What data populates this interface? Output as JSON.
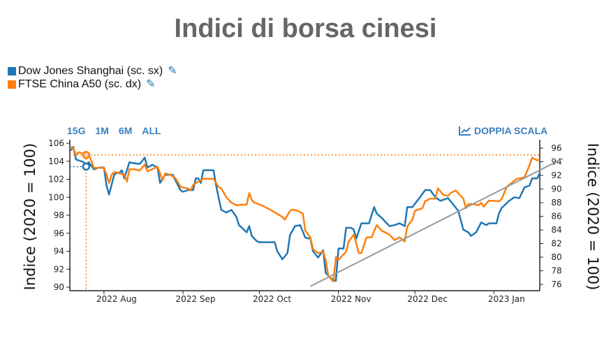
{
  "title": "Indici di borsa cinesi",
  "legend": [
    {
      "label": "Dow Jones Shanghai (sc. sx)",
      "color": "#1f77b4",
      "icon": "edit-icon"
    },
    {
      "label": "FTSE China A50 (sc. dx)",
      "color": "#ff7f0e",
      "icon": "edit-icon"
    }
  ],
  "range_buttons": [
    "15G",
    "1M",
    "6M",
    "ALL"
  ],
  "dual_scale_button": {
    "label": "DOPPIA SCALA",
    "icon": "chart-line-icon"
  },
  "chart_data": {
    "type": "line",
    "x_unit": "days from 2022 Aug 1",
    "xlim": [
      -13.4,
      171
    ],
    "x_ticks": [
      {
        "label": "2022 Aug",
        "x": 0
      },
      {
        "label": "2022 Sep",
        "x": 31
      },
      {
        "label": "2022 Oct",
        "x": 61
      },
      {
        "label": "2022 Nov",
        "x": 92
      },
      {
        "label": "2022 Dec",
        "x": 122
      },
      {
        "label": "2023 Jan",
        "x": 153
      }
    ],
    "y_left": {
      "label": "Indice (2020 = 100)",
      "lim": [
        89.8,
        106.4
      ],
      "ticks": [
        90,
        92,
        94,
        96,
        98,
        100,
        102,
        104,
        106
      ]
    },
    "y_right": {
      "label": "Indice (2020 = 100)",
      "lim": [
        75.2,
        96.5
      ],
      "ticks": [
        76,
        78,
        80,
        82,
        84,
        86,
        88,
        90,
        92,
        94,
        96
      ]
    },
    "series": [
      {
        "name": "Dow Jones Shanghai (sc. sx)",
        "axis": "left",
        "color": "#1f77b4",
        "points": [
          [
            -13,
            105.2
          ],
          [
            -12,
            105.6
          ],
          [
            -11,
            104.2
          ],
          [
            -8,
            103.9
          ],
          [
            -7,
            103.4
          ],
          [
            -6,
            103.9
          ],
          [
            -4,
            103.1
          ],
          [
            -2,
            103.3
          ],
          [
            0,
            103.3
          ],
          [
            1,
            101.3
          ],
          [
            2,
            100.3
          ],
          [
            4,
            102.5
          ],
          [
            5,
            102.7
          ],
          [
            6,
            102.7
          ],
          [
            7,
            103.0
          ],
          [
            8,
            102.1
          ],
          [
            10,
            103.9
          ],
          [
            11,
            103.8
          ],
          [
            14,
            103.7
          ],
          [
            16,
            104.4
          ],
          [
            17,
            103.3
          ],
          [
            19,
            103.6
          ],
          [
            21,
            103.3
          ],
          [
            22,
            101.6
          ],
          [
            24,
            102.5
          ],
          [
            27,
            102.5
          ],
          [
            28,
            101.9
          ],
          [
            30,
            100.8
          ],
          [
            31,
            100.6
          ],
          [
            33,
            100.8
          ],
          [
            35,
            100.8
          ],
          [
            36,
            102.1
          ],
          [
            37,
            102.1
          ],
          [
            38,
            101.6
          ],
          [
            39,
            103.0
          ],
          [
            43,
            103.0
          ],
          [
            44,
            101.3
          ],
          [
            46,
            98.6
          ],
          [
            48,
            98.3
          ],
          [
            50,
            98.6
          ],
          [
            52,
            97.8
          ],
          [
            53,
            96.9
          ],
          [
            56,
            96.1
          ],
          [
            57,
            96.8
          ],
          [
            58,
            95.7
          ],
          [
            60,
            95.1
          ],
          [
            61,
            95.0
          ],
          [
            63,
            95.0
          ],
          [
            67,
            95.0
          ],
          [
            68,
            94.0
          ],
          [
            70,
            93.1
          ],
          [
            72,
            93.8
          ],
          [
            73,
            95.8
          ],
          [
            75,
            96.8
          ],
          [
            77,
            96.9
          ],
          [
            79,
            95.5
          ],
          [
            81,
            95.4
          ],
          [
            82,
            94.0
          ],
          [
            84,
            93.3
          ],
          [
            86,
            94.1
          ],
          [
            87,
            91.6
          ],
          [
            89,
            91.0
          ],
          [
            91,
            90.7
          ],
          [
            92,
            94.3
          ],
          [
            94,
            94.3
          ],
          [
            95,
            96.6
          ],
          [
            97,
            96.6
          ],
          [
            98,
            96.4
          ],
          [
            99,
            95.4
          ],
          [
            101,
            97.1
          ],
          [
            104,
            97.1
          ],
          [
            106,
            98.9
          ],
          [
            107,
            98.2
          ],
          [
            109,
            97.7
          ],
          [
            112,
            96.8
          ],
          [
            114,
            96.9
          ],
          [
            116,
            97.1
          ],
          [
            118,
            96.8
          ],
          [
            119,
            98.9
          ],
          [
            121,
            98.9
          ],
          [
            124,
            100.0
          ],
          [
            126,
            100.8
          ],
          [
            128,
            100.8
          ],
          [
            130,
            100.0
          ],
          [
            132,
            99.6
          ],
          [
            135,
            99.9
          ],
          [
            137,
            99.2
          ],
          [
            139,
            98.5
          ],
          [
            141,
            96.4
          ],
          [
            143,
            96.1
          ],
          [
            144,
            95.7
          ],
          [
            146,
            96.1
          ],
          [
            148,
            97.2
          ],
          [
            150,
            96.9
          ],
          [
            151,
            97.1
          ],
          [
            154,
            97.1
          ],
          [
            155,
            98.2
          ],
          [
            156,
            98.8
          ],
          [
            159,
            99.6
          ],
          [
            161,
            100.0
          ],
          [
            163,
            99.9
          ],
          [
            165,
            101.1
          ],
          [
            167,
            101.3
          ],
          [
            168,
            102.1
          ],
          [
            170,
            102.1
          ],
          [
            171,
            102.7
          ]
        ]
      },
      {
        "name": "FTSE China A50 (sc. dx)",
        "axis": "right",
        "color": "#ff7f0e",
        "points": [
          [
            -13,
            96.2
          ],
          [
            -12,
            96.0
          ],
          [
            -11,
            95.0
          ],
          [
            -10,
            95.4
          ],
          [
            -8,
            95.2
          ],
          [
            -6,
            95.0
          ],
          [
            -5,
            94.2
          ],
          [
            -4,
            93.1
          ],
          [
            0,
            93.1
          ],
          [
            1,
            92.1
          ],
          [
            2,
            90.9
          ],
          [
            3,
            92.1
          ],
          [
            4,
            92.5
          ],
          [
            6,
            92.3
          ],
          [
            8,
            92.1
          ],
          [
            9,
            91.1
          ],
          [
            10,
            92.9
          ],
          [
            12,
            92.9
          ],
          [
            14,
            92.7
          ],
          [
            16,
            93.6
          ],
          [
            17,
            92.6
          ],
          [
            19,
            92.9
          ],
          [
            21,
            93.3
          ],
          [
            23,
            91.3
          ],
          [
            24,
            92.3
          ],
          [
            26,
            92.1
          ],
          [
            28,
            91.6
          ],
          [
            30,
            90.4
          ],
          [
            31,
            90.2
          ],
          [
            33,
            90.1
          ],
          [
            34,
            89.8
          ],
          [
            35,
            90.6
          ],
          [
            37,
            91.1
          ],
          [
            39,
            91.5
          ],
          [
            40,
            91.5
          ],
          [
            43,
            91.5
          ],
          [
            45,
            90.3
          ],
          [
            46,
            90.1
          ],
          [
            48,
            88.8
          ],
          [
            50,
            88.0
          ],
          [
            52,
            87.6
          ],
          [
            54,
            87.7
          ],
          [
            56,
            87.7
          ],
          [
            57,
            89.4
          ],
          [
            58,
            88.4
          ],
          [
            59,
            88.0
          ],
          [
            62,
            87.6
          ],
          [
            64,
            87.2
          ],
          [
            67,
            86.6
          ],
          [
            70,
            85.9
          ],
          [
            71,
            85.5
          ],
          [
            73,
            86.8
          ],
          [
            74,
            87.0
          ],
          [
            76,
            86.8
          ],
          [
            78,
            86.4
          ],
          [
            79,
            83.9
          ],
          [
            81,
            82.9
          ],
          [
            82,
            81.2
          ],
          [
            84,
            80.6
          ],
          [
            86,
            80.8
          ],
          [
            87,
            79.6
          ],
          [
            88,
            77.3
          ],
          [
            90,
            76.4
          ],
          [
            91,
            80.0
          ],
          [
            92,
            79.6
          ],
          [
            95,
            80.8
          ],
          [
            96,
            82.3
          ],
          [
            98,
            83.3
          ],
          [
            100,
            80.6
          ],
          [
            101,
            80.6
          ],
          [
            103,
            82.9
          ],
          [
            105,
            82.9
          ],
          [
            107,
            84.7
          ],
          [
            109,
            83.9
          ],
          [
            112,
            83.3
          ],
          [
            114,
            82.5
          ],
          [
            116,
            82.9
          ],
          [
            118,
            82.3
          ],
          [
            119,
            84.5
          ],
          [
            121,
            85.5
          ],
          [
            122,
            86.8
          ],
          [
            125,
            87.2
          ],
          [
            126,
            88.2
          ],
          [
            128,
            88.6
          ],
          [
            130,
            88.6
          ],
          [
            131,
            90.1
          ],
          [
            133,
            89.2
          ],
          [
            135,
            89.0
          ],
          [
            136,
            89.4
          ],
          [
            138,
            89.8
          ],
          [
            140,
            89.0
          ],
          [
            141,
            88.6
          ],
          [
            142,
            87.2
          ],
          [
            143,
            87.8
          ],
          [
            145,
            87.8
          ],
          [
            147,
            87.6
          ],
          [
            148,
            88.0
          ],
          [
            149,
            87.4
          ],
          [
            151,
            88.3
          ],
          [
            155,
            88.2
          ],
          [
            156,
            88.5
          ],
          [
            158,
            90.3
          ],
          [
            160,
            90.9
          ],
          [
            162,
            91.5
          ],
          [
            165,
            91.7
          ],
          [
            167,
            93.5
          ],
          [
            168,
            94.6
          ],
          [
            170,
            94.2
          ],
          [
            171,
            94.4
          ]
        ]
      }
    ],
    "trendline": {
      "axis": "left",
      "color": "#999999",
      "points": [
        [
          81,
          90.1
        ],
        [
          180,
          104.3
        ]
      ]
    },
    "crosshair": {
      "x": -7,
      "left_value": 103.4,
      "right_value": 95.0
    }
  }
}
